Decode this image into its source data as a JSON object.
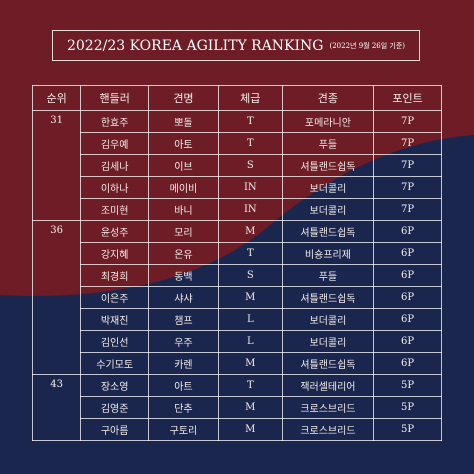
{
  "header": {
    "title": "2022/23 KOREA AGILITY RANKING",
    "subtitle": "(2022년 9월 26일 기준)"
  },
  "table": {
    "columns": [
      "순위",
      "핸들러",
      "견명",
      "체급",
      "견종",
      "포인트"
    ],
    "groups": [
      {
        "rank": "31",
        "rows": [
          [
            "한효주",
            "뽀돌",
            "T",
            "포메라니안",
            "7P"
          ],
          [
            "김우예",
            "아토",
            "T",
            "푸들",
            "7P"
          ],
          [
            "김세나",
            "이브",
            "S",
            "셔틀랜드쉽독",
            "7P"
          ],
          [
            "이하나",
            "메이비",
            "IN",
            "보더콜리",
            "7P"
          ],
          [
            "조미현",
            "바니",
            "IN",
            "보더콜리",
            "7P"
          ]
        ]
      },
      {
        "rank": "36",
        "rows": [
          [
            "윤성주",
            "모리",
            "M",
            "셔틀랜드쉽독",
            "6P"
          ],
          [
            "강지혜",
            "온유",
            "T",
            "비숑프리제",
            "6P"
          ],
          [
            "최경희",
            "동백",
            "S",
            "푸들",
            "6P"
          ],
          [
            "이은주",
            "샤샤",
            "M",
            "셔틀랜드쉽독",
            "6P"
          ],
          [
            "박재진",
            "챔프",
            "L",
            "보더콜리",
            "6P"
          ],
          [
            "김인선",
            "우주",
            "L",
            "보더콜리",
            "6P"
          ],
          [
            "수기모토",
            "카렌",
            "M",
            "셔틀랜드쉽독",
            "6P"
          ]
        ]
      },
      {
        "rank": "43",
        "rows": [
          [
            "장소영",
            "아트",
            "T",
            "잭러셀테리어",
            "5P"
          ],
          [
            "김영준",
            "단추",
            "M",
            "크로스브리드",
            "5P"
          ],
          [
            "구아름",
            "구토리",
            "M",
            "크로스브리드",
            "5P"
          ]
        ]
      }
    ]
  }
}
